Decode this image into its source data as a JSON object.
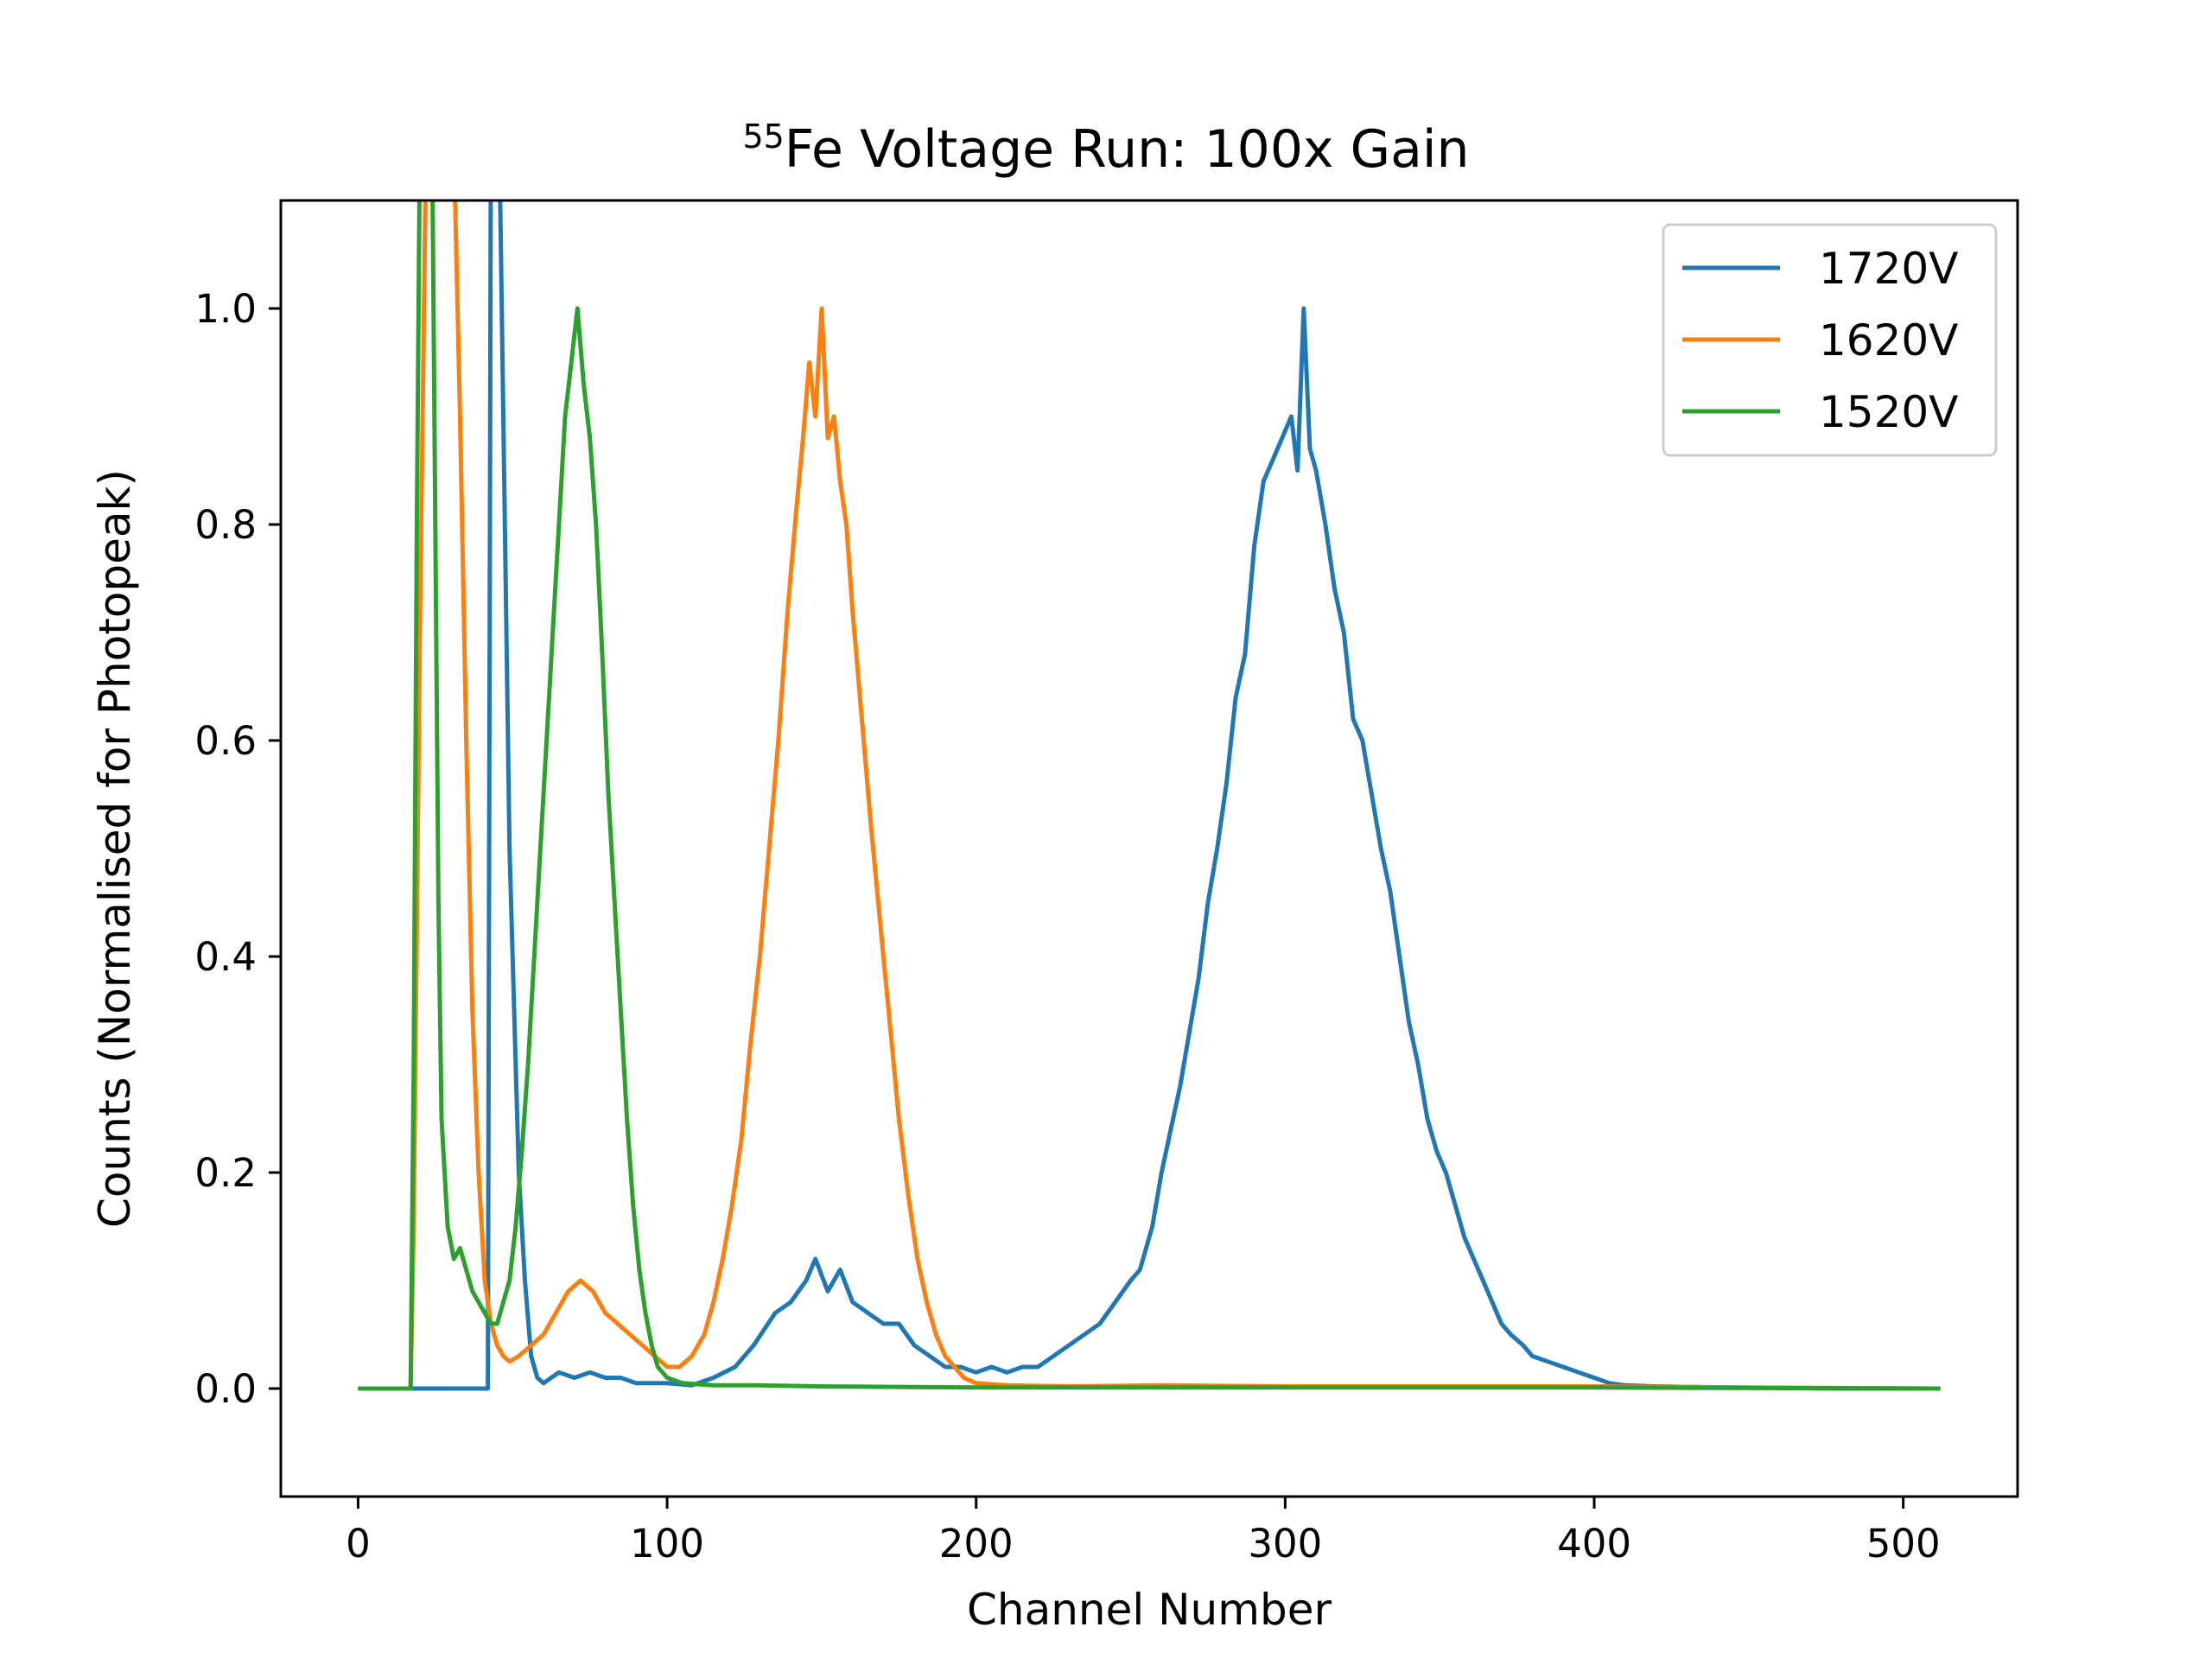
{
  "chart_data": {
    "type": "line",
    "title": {
      "sup": "55",
      "main": "Fe Voltage Run: 100x Gain"
    },
    "xlabel": "Channel Number",
    "ylabel": "Counts (Normalised for Photopeak)",
    "xlim": [
      -25,
      537
    ],
    "ylim": [
      -0.1,
      1.1
    ],
    "xticks": [
      0,
      100,
      200,
      300,
      400,
      500
    ],
    "yticks": [
      0.0,
      0.2,
      0.4,
      0.6,
      0.8,
      1.0
    ],
    "xtick_labels": [
      "0",
      "100",
      "200",
      "300",
      "400",
      "500"
    ],
    "ytick_labels": [
      "0.0",
      "0.2",
      "0.4",
      "0.6",
      "0.8",
      "1.0"
    ],
    "grid": false,
    "legend_position": "top-right",
    "x_range": [
      0,
      512
    ],
    "series": [
      {
        "name": "1720V",
        "color": "#1f77b4",
        "points": [
          [
            0,
            0
          ],
          [
            42,
            0
          ],
          [
            43,
            1.2
          ],
          [
            45,
            1.3
          ],
          [
            46,
            1.1
          ],
          [
            47,
            0.9
          ],
          [
            49,
            0.5
          ],
          [
            52,
            0.2
          ],
          [
            54,
            0.1
          ],
          [
            56,
            0.03
          ],
          [
            58,
            0.01
          ],
          [
            60,
            0.005
          ],
          [
            65,
            0.015
          ],
          [
            70,
            0.01
          ],
          [
            75,
            0.015
          ],
          [
            80,
            0.01
          ],
          [
            85,
            0.01
          ],
          [
            90,
            0.005
          ],
          [
            100,
            0.005
          ],
          [
            108,
            0.003
          ],
          [
            115,
            0.01
          ],
          [
            122,
            0.02
          ],
          [
            128,
            0.04
          ],
          [
            135,
            0.07
          ],
          [
            140,
            0.08
          ],
          [
            145,
            0.1
          ],
          [
            148,
            0.12
          ],
          [
            152,
            0.09
          ],
          [
            156,
            0.11
          ],
          [
            160,
            0.08
          ],
          [
            165,
            0.07
          ],
          [
            170,
            0.06
          ],
          [
            175,
            0.06
          ],
          [
            180,
            0.04
          ],
          [
            185,
            0.03
          ],
          [
            190,
            0.02
          ],
          [
            195,
            0.02
          ],
          [
            200,
            0.015
          ],
          [
            205,
            0.02
          ],
          [
            210,
            0.015
          ],
          [
            215,
            0.02
          ],
          [
            220,
            0.02
          ],
          [
            225,
            0.03
          ],
          [
            230,
            0.04
          ],
          [
            235,
            0.05
          ],
          [
            240,
            0.06
          ],
          [
            245,
            0.08
          ],
          [
            250,
            0.1
          ],
          [
            253,
            0.11
          ],
          [
            257,
            0.15
          ],
          [
            260,
            0.2
          ],
          [
            263,
            0.24
          ],
          [
            266,
            0.28
          ],
          [
            269,
            0.33
          ],
          [
            272,
            0.38
          ],
          [
            275,
            0.45
          ],
          [
            278,
            0.5
          ],
          [
            281,
            0.56
          ],
          [
            284,
            0.64
          ],
          [
            287,
            0.68
          ],
          [
            290,
            0.78
          ],
          [
            293,
            0.84
          ],
          [
            296,
            0.86
          ],
          [
            299,
            0.88
          ],
          [
            302,
            0.9
          ],
          [
            304,
            0.85
          ],
          [
            306,
            1.0
          ],
          [
            308,
            0.87
          ],
          [
            310,
            0.85
          ],
          [
            313,
            0.8
          ],
          [
            316,
            0.74
          ],
          [
            319,
            0.7
          ],
          [
            322,
            0.62
          ],
          [
            325,
            0.6
          ],
          [
            328,
            0.55
          ],
          [
            331,
            0.5
          ],
          [
            334,
            0.46
          ],
          [
            337,
            0.4
          ],
          [
            340,
            0.34
          ],
          [
            343,
            0.3
          ],
          [
            346,
            0.25
          ],
          [
            349,
            0.22
          ],
          [
            352,
            0.2
          ],
          [
            355,
            0.17
          ],
          [
            358,
            0.14
          ],
          [
            361,
            0.12
          ],
          [
            364,
            0.1
          ],
          [
            367,
            0.08
          ],
          [
            370,
            0.06
          ],
          [
            373,
            0.05
          ],
          [
            377,
            0.04
          ],
          [
            380,
            0.03
          ],
          [
            385,
            0.025
          ],
          [
            390,
            0.02
          ],
          [
            395,
            0.015
          ],
          [
            400,
            0.01
          ],
          [
            405,
            0.005
          ],
          [
            410,
            0.003
          ],
          [
            420,
            0.002
          ],
          [
            440,
            0.001
          ],
          [
            480,
            0
          ],
          [
            512,
            0
          ]
        ]
      },
      {
        "name": "1620V",
        "color": "#ff7f0e",
        "points": [
          [
            0,
            0
          ],
          [
            17,
            0
          ],
          [
            18,
            0.15
          ],
          [
            20,
            0.7
          ],
          [
            22,
            1.15
          ],
          [
            31,
            1.15
          ],
          [
            33,
            0.9
          ],
          [
            35,
            0.6
          ],
          [
            37,
            0.35
          ],
          [
            39,
            0.2
          ],
          [
            41,
            0.1
          ],
          [
            43,
            0.06
          ],
          [
            45,
            0.04
          ],
          [
            47,
            0.03
          ],
          [
            49,
            0.025
          ],
          [
            52,
            0.03
          ],
          [
            56,
            0.04
          ],
          [
            60,
            0.05
          ],
          [
            64,
            0.07
          ],
          [
            68,
            0.09
          ],
          [
            72,
            0.1
          ],
          [
            76,
            0.09
          ],
          [
            80,
            0.07
          ],
          [
            84,
            0.06
          ],
          [
            88,
            0.05
          ],
          [
            92,
            0.04
          ],
          [
            96,
            0.03
          ],
          [
            100,
            0.02
          ],
          [
            104,
            0.02
          ],
          [
            108,
            0.03
          ],
          [
            112,
            0.05
          ],
          [
            115,
            0.08
          ],
          [
            118,
            0.12
          ],
          [
            121,
            0.17
          ],
          [
            124,
            0.23
          ],
          [
            127,
            0.32
          ],
          [
            130,
            0.4
          ],
          [
            133,
            0.5
          ],
          [
            136,
            0.6
          ],
          [
            139,
            0.72
          ],
          [
            142,
            0.82
          ],
          [
            144,
            0.88
          ],
          [
            146,
            0.95
          ],
          [
            148,
            0.9
          ],
          [
            150,
            1.0
          ],
          [
            152,
            0.88
          ],
          [
            154,
            0.9
          ],
          [
            156,
            0.84
          ],
          [
            158,
            0.8
          ],
          [
            160,
            0.72
          ],
          [
            163,
            0.62
          ],
          [
            166,
            0.52
          ],
          [
            169,
            0.43
          ],
          [
            172,
            0.34
          ],
          [
            175,
            0.25
          ],
          [
            178,
            0.18
          ],
          [
            181,
            0.12
          ],
          [
            184,
            0.08
          ],
          [
            187,
            0.05
          ],
          [
            190,
            0.03
          ],
          [
            193,
            0.02
          ],
          [
            196,
            0.01
          ],
          [
            200,
            0.005
          ],
          [
            210,
            0.003
          ],
          [
            230,
            0.002
          ],
          [
            260,
            0.003
          ],
          [
            300,
            0.002
          ],
          [
            350,
            0.002
          ],
          [
            400,
            0.002
          ],
          [
            450,
            0.001
          ],
          [
            512,
            0
          ]
        ]
      },
      {
        "name": "1520V",
        "color": "#2ca02c",
        "points": [
          [
            0,
            0
          ],
          [
            17,
            0
          ],
          [
            18,
            0.3
          ],
          [
            19,
            0.8
          ],
          [
            20,
            1.15
          ],
          [
            24,
            1.15
          ],
          [
            25,
            0.8
          ],
          [
            26,
            0.45
          ],
          [
            27,
            0.25
          ],
          [
            29,
            0.15
          ],
          [
            31,
            0.12
          ],
          [
            33,
            0.13
          ],
          [
            35,
            0.11
          ],
          [
            37,
            0.09
          ],
          [
            39,
            0.08
          ],
          [
            41,
            0.07
          ],
          [
            43,
            0.06
          ],
          [
            45,
            0.06
          ],
          [
            47,
            0.08
          ],
          [
            49,
            0.1
          ],
          [
            51,
            0.15
          ],
          [
            53,
            0.22
          ],
          [
            55,
            0.3
          ],
          [
            57,
            0.4
          ],
          [
            59,
            0.5
          ],
          [
            61,
            0.6
          ],
          [
            63,
            0.7
          ],
          [
            65,
            0.8
          ],
          [
            67,
            0.9
          ],
          [
            69,
            0.95
          ],
          [
            71,
            1.0
          ],
          [
            73,
            0.93
          ],
          [
            75,
            0.88
          ],
          [
            77,
            0.8
          ],
          [
            79,
            0.68
          ],
          [
            81,
            0.55
          ],
          [
            83,
            0.45
          ],
          [
            85,
            0.35
          ],
          [
            87,
            0.25
          ],
          [
            89,
            0.17
          ],
          [
            91,
            0.11
          ],
          [
            93,
            0.07
          ],
          [
            95,
            0.04
          ],
          [
            97,
            0.02
          ],
          [
            100,
            0.01
          ],
          [
            105,
            0.005
          ],
          [
            115,
            0.003
          ],
          [
            130,
            0.003
          ],
          [
            150,
            0.002
          ],
          [
            200,
            0.001
          ],
          [
            300,
            0.001
          ],
          [
            400,
            0.001
          ],
          [
            512,
            0
          ]
        ]
      }
    ]
  }
}
